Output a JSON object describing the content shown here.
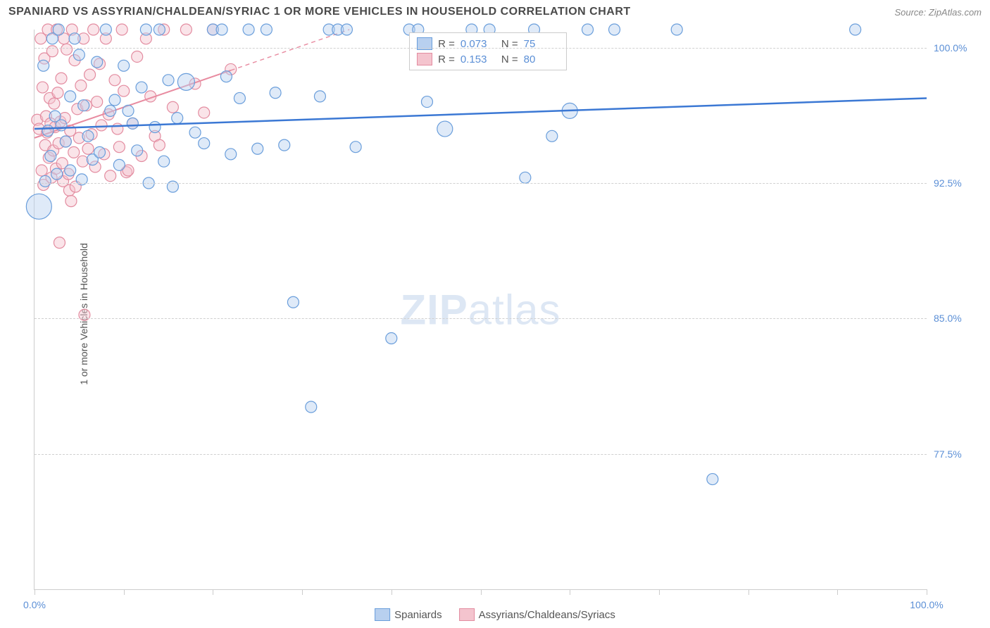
{
  "header": {
    "title": "SPANIARD VS ASSYRIAN/CHALDEAN/SYRIAC 1 OR MORE VEHICLES IN HOUSEHOLD CORRELATION CHART",
    "source": "Source: ZipAtlas.com"
  },
  "axes": {
    "y_title": "1 or more Vehicles in Household",
    "x_min": 0,
    "x_max": 100,
    "y_min": 70,
    "y_max": 101,
    "x_ticks": [
      0,
      10,
      20,
      30,
      40,
      50,
      60,
      70,
      80,
      90,
      100
    ],
    "y_ticks": [
      77.5,
      85.0,
      92.5,
      100.0
    ],
    "y_tick_labels": [
      "77.5%",
      "85.0%",
      "92.5%",
      "100.0%"
    ],
    "x_tick_labels_shown": {
      "0": "0.0%",
      "100": "100.0%"
    },
    "grid_color": "#d0d0d0",
    "axis_color": "#cccccc",
    "tick_label_color": "#5b8fd6"
  },
  "watermark": {
    "zip": "ZIP",
    "atlas": "atlas"
  },
  "series": {
    "spaniards": {
      "label": "Spaniards",
      "fill": "#b8d0ef",
      "stroke": "#6a9edb",
      "fill_opacity": 0.45,
      "marker_r_default": 8,
      "trend_color": "#3b78d4",
      "trend_width": 2.5,
      "trend_dash_after_x": 100,
      "trend": {
        "y_at_x0": 95.5,
        "y_at_x100": 97.2
      },
      "R": "0.073",
      "N": "75",
      "points": [
        {
          "x": 0.5,
          "y": 91.2,
          "r": 18
        },
        {
          "x": 1,
          "y": 99
        },
        {
          "x": 1.2,
          "y": 92.6
        },
        {
          "x": 1.5,
          "y": 95.4
        },
        {
          "x": 1.8,
          "y": 94
        },
        {
          "x": 2,
          "y": 100.5
        },
        {
          "x": 2.3,
          "y": 96.2
        },
        {
          "x": 2.5,
          "y": 93
        },
        {
          "x": 2.7,
          "y": 101
        },
        {
          "x": 3,
          "y": 95.7
        },
        {
          "x": 3.5,
          "y": 94.8
        },
        {
          "x": 4,
          "y": 97.3
        },
        {
          "x": 4,
          "y": 93.2
        },
        {
          "x": 4.5,
          "y": 100.5
        },
        {
          "x": 5,
          "y": 99.6
        },
        {
          "x": 5.3,
          "y": 92.7
        },
        {
          "x": 5.5,
          "y": 96.8
        },
        {
          "x": 6,
          "y": 95.1
        },
        {
          "x": 6.5,
          "y": 93.8
        },
        {
          "x": 7,
          "y": 99.2
        },
        {
          "x": 7.3,
          "y": 94.2
        },
        {
          "x": 8,
          "y": 101
        },
        {
          "x": 8.5,
          "y": 96.5
        },
        {
          "x": 9,
          "y": 97.1
        },
        {
          "x": 9.5,
          "y": 93.5
        },
        {
          "x": 10,
          "y": 99
        },
        {
          "x": 10.5,
          "y": 96.5
        },
        {
          "x": 11,
          "y": 95.8
        },
        {
          "x": 11.5,
          "y": 94.3
        },
        {
          "x": 12,
          "y": 97.8
        },
        {
          "x": 12.5,
          "y": 101
        },
        {
          "x": 12.8,
          "y": 92.5
        },
        {
          "x": 13.5,
          "y": 95.6
        },
        {
          "x": 14,
          "y": 101
        },
        {
          "x": 14.5,
          "y": 93.7
        },
        {
          "x": 15,
          "y": 98.2
        },
        {
          "x": 15.5,
          "y": 92.3
        },
        {
          "x": 16,
          "y": 96.1
        },
        {
          "x": 17,
          "y": 98.1,
          "r": 12
        },
        {
          "x": 18,
          "y": 95.3
        },
        {
          "x": 19,
          "y": 94.7
        },
        {
          "x": 20,
          "y": 101
        },
        {
          "x": 21,
          "y": 101
        },
        {
          "x": 21.5,
          "y": 98.4
        },
        {
          "x": 22,
          "y": 94.1
        },
        {
          "x": 23,
          "y": 97.2
        },
        {
          "x": 24,
          "y": 101
        },
        {
          "x": 25,
          "y": 94.4
        },
        {
          "x": 26,
          "y": 101
        },
        {
          "x": 27,
          "y": 97.5
        },
        {
          "x": 28,
          "y": 94.6
        },
        {
          "x": 29,
          "y": 85.9
        },
        {
          "x": 31,
          "y": 80.1
        },
        {
          "x": 32,
          "y": 97.3
        },
        {
          "x": 33,
          "y": 101
        },
        {
          "x": 34,
          "y": 101
        },
        {
          "x": 35,
          "y": 101
        },
        {
          "x": 36,
          "y": 94.5
        },
        {
          "x": 40,
          "y": 83.9
        },
        {
          "x": 42,
          "y": 101
        },
        {
          "x": 43,
          "y": 101
        },
        {
          "x": 44,
          "y": 97
        },
        {
          "x": 46,
          "y": 95.5,
          "r": 11
        },
        {
          "x": 49,
          "y": 101
        },
        {
          "x": 51,
          "y": 101
        },
        {
          "x": 53,
          "y": 100.5
        },
        {
          "x": 55,
          "y": 92.8
        },
        {
          "x": 56,
          "y": 101
        },
        {
          "x": 58,
          "y": 95.1
        },
        {
          "x": 60,
          "y": 96.5,
          "r": 11
        },
        {
          "x": 62,
          "y": 101
        },
        {
          "x": 65,
          "y": 101
        },
        {
          "x": 72,
          "y": 101
        },
        {
          "x": 76,
          "y": 76.1
        },
        {
          "x": 92,
          "y": 101
        }
      ]
    },
    "acs": {
      "label": "Assyrians/Chaldeans/Syriacs",
      "fill": "#f4c4ce",
      "stroke": "#e38ca0",
      "fill_opacity": 0.45,
      "marker_r_default": 8,
      "trend_color": "#e88ba0",
      "trend_width": 2,
      "trend_dash_after_x": 22,
      "trend": {
        "y_at_x0": 95.0,
        "y_at_x100": 112.0
      },
      "R": "0.153",
      "N": "80",
      "points": [
        {
          "x": 0.3,
          "y": 96
        },
        {
          "x": 0.5,
          "y": 95.5
        },
        {
          "x": 0.7,
          "y": 100.5
        },
        {
          "x": 0.8,
          "y": 93.2
        },
        {
          "x": 0.9,
          "y": 97.8
        },
        {
          "x": 1,
          "y": 92.4
        },
        {
          "x": 1.1,
          "y": 99.4
        },
        {
          "x": 1.2,
          "y": 94.6
        },
        {
          "x": 1.3,
          "y": 96.2
        },
        {
          "x": 1.4,
          "y": 95.3
        },
        {
          "x": 1.5,
          "y": 101
        },
        {
          "x": 1.6,
          "y": 93.9
        },
        {
          "x": 1.7,
          "y": 97.2
        },
        {
          "x": 1.8,
          "y": 95.8
        },
        {
          "x": 1.9,
          "y": 92.8
        },
        {
          "x": 2,
          "y": 99.8
        },
        {
          "x": 2.1,
          "y": 94.3
        },
        {
          "x": 2.2,
          "y": 96.9
        },
        {
          "x": 2.3,
          "y": 95.6
        },
        {
          "x": 2.4,
          "y": 93.3
        },
        {
          "x": 2.5,
          "y": 101
        },
        {
          "x": 2.6,
          "y": 97.5
        },
        {
          "x": 2.7,
          "y": 94.7
        },
        {
          "x": 2.8,
          "y": 89.2
        },
        {
          "x": 2.9,
          "y": 95.9
        },
        {
          "x": 3,
          "y": 98.3
        },
        {
          "x": 3.1,
          "y": 93.6
        },
        {
          "x": 3.2,
          "y": 92.6
        },
        {
          "x": 3.3,
          "y": 100.5
        },
        {
          "x": 3.4,
          "y": 96.1
        },
        {
          "x": 3.5,
          "y": 94.8
        },
        {
          "x": 3.6,
          "y": 99.9
        },
        {
          "x": 3.8,
          "y": 93
        },
        {
          "x": 3.9,
          "y": 92.1
        },
        {
          "x": 4,
          "y": 95.4
        },
        {
          "x": 4.1,
          "y": 91.5
        },
        {
          "x": 4.2,
          "y": 101
        },
        {
          "x": 4.4,
          "y": 94.2
        },
        {
          "x": 4.5,
          "y": 99.3
        },
        {
          "x": 4.6,
          "y": 92.3
        },
        {
          "x": 4.8,
          "y": 96.6
        },
        {
          "x": 5,
          "y": 95
        },
        {
          "x": 5.2,
          "y": 97.9
        },
        {
          "x": 5.4,
          "y": 93.7
        },
        {
          "x": 5.5,
          "y": 100.5
        },
        {
          "x": 5.6,
          "y": 85.2
        },
        {
          "x": 5.8,
          "y": 96.8
        },
        {
          "x": 6,
          "y": 94.4
        },
        {
          "x": 6.2,
          "y": 98.5
        },
        {
          "x": 6.4,
          "y": 95.2
        },
        {
          "x": 6.6,
          "y": 101
        },
        {
          "x": 6.8,
          "y": 93.4
        },
        {
          "x": 7,
          "y": 97
        },
        {
          "x": 7.3,
          "y": 99.1
        },
        {
          "x": 7.5,
          "y": 95.7
        },
        {
          "x": 7.8,
          "y": 94.1
        },
        {
          "x": 8,
          "y": 100.5
        },
        {
          "x": 8.3,
          "y": 96.3
        },
        {
          "x": 8.5,
          "y": 92.9
        },
        {
          "x": 9,
          "y": 98.2
        },
        {
          "x": 9.3,
          "y": 95.5
        },
        {
          "x": 9.5,
          "y": 94.5
        },
        {
          "x": 9.8,
          "y": 101
        },
        {
          "x": 10,
          "y": 97.6
        },
        {
          "x": 10.3,
          "y": 93.1
        },
        {
          "x": 10.5,
          "y": 93.2
        },
        {
          "x": 11,
          "y": 95.8
        },
        {
          "x": 11.5,
          "y": 99.5
        },
        {
          "x": 12,
          "y": 94
        },
        {
          "x": 12.5,
          "y": 100.5
        },
        {
          "x": 13,
          "y": 97.3
        },
        {
          "x": 13.5,
          "y": 95.1
        },
        {
          "x": 14,
          "y": 94.6
        },
        {
          "x": 14.5,
          "y": 101
        },
        {
          "x": 15.5,
          "y": 96.7
        },
        {
          "x": 17,
          "y": 101
        },
        {
          "x": 18,
          "y": 98
        },
        {
          "x": 19,
          "y": 96.4
        },
        {
          "x": 20,
          "y": 101
        },
        {
          "x": 22,
          "y": 98.8
        }
      ]
    }
  },
  "stats_box_labels": {
    "R": "R =",
    "N": "N ="
  },
  "bottom_legend_order": [
    "spaniards",
    "acs"
  ]
}
